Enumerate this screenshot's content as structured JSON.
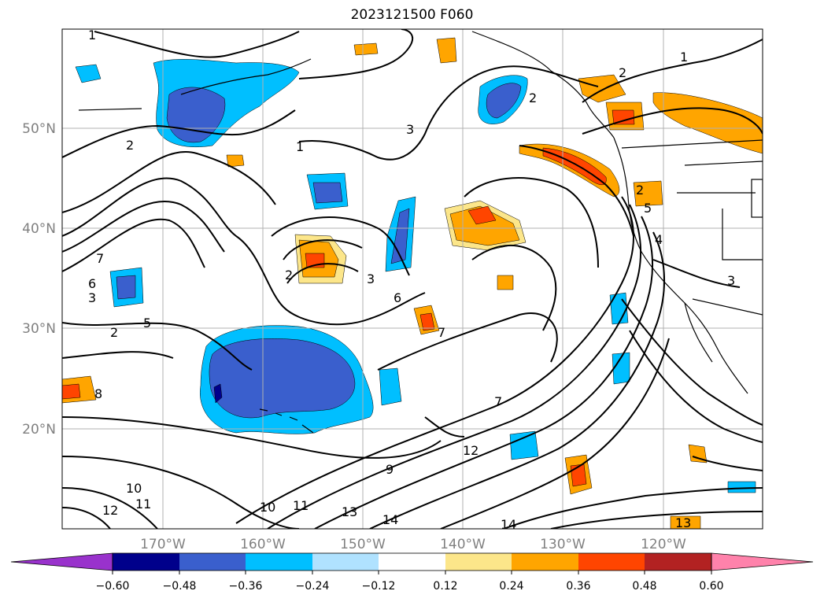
{
  "title": "2023121500 F060",
  "map": {
    "lat_labels": [
      "50°N",
      "40°N",
      "30°N",
      "20°N"
    ],
    "lon_labels": [
      "170°W",
      "160°W",
      "150°W",
      "140°W",
      "130°W",
      "120°W"
    ]
  },
  "contours": {
    "labels": [
      "1",
      "1",
      "1",
      "2",
      "2",
      "2",
      "2",
      "2",
      "2",
      "3",
      "3",
      "3",
      "3",
      "4",
      "5",
      "5",
      "6",
      "6",
      "7",
      "7",
      "7",
      "8",
      "9",
      "10",
      "10",
      "11",
      "11",
      "12",
      "12",
      "13",
      "13",
      "14",
      "14"
    ]
  },
  "colorbar": {
    "ticks": [
      "−0.60",
      "−0.48",
      "−0.36",
      "−0.24",
      "−0.12",
      "0.12",
      "0.24",
      "0.36",
      "0.48",
      "0.60"
    ],
    "colors": [
      "#9932cc",
      "#00008b",
      "#3a5fcd",
      "#00bfff",
      "#b0e2ff",
      "#ffffff",
      "#fce68a",
      "#ffa500",
      "#ff4500",
      "#b22222",
      "#ff82ab"
    ]
  }
}
